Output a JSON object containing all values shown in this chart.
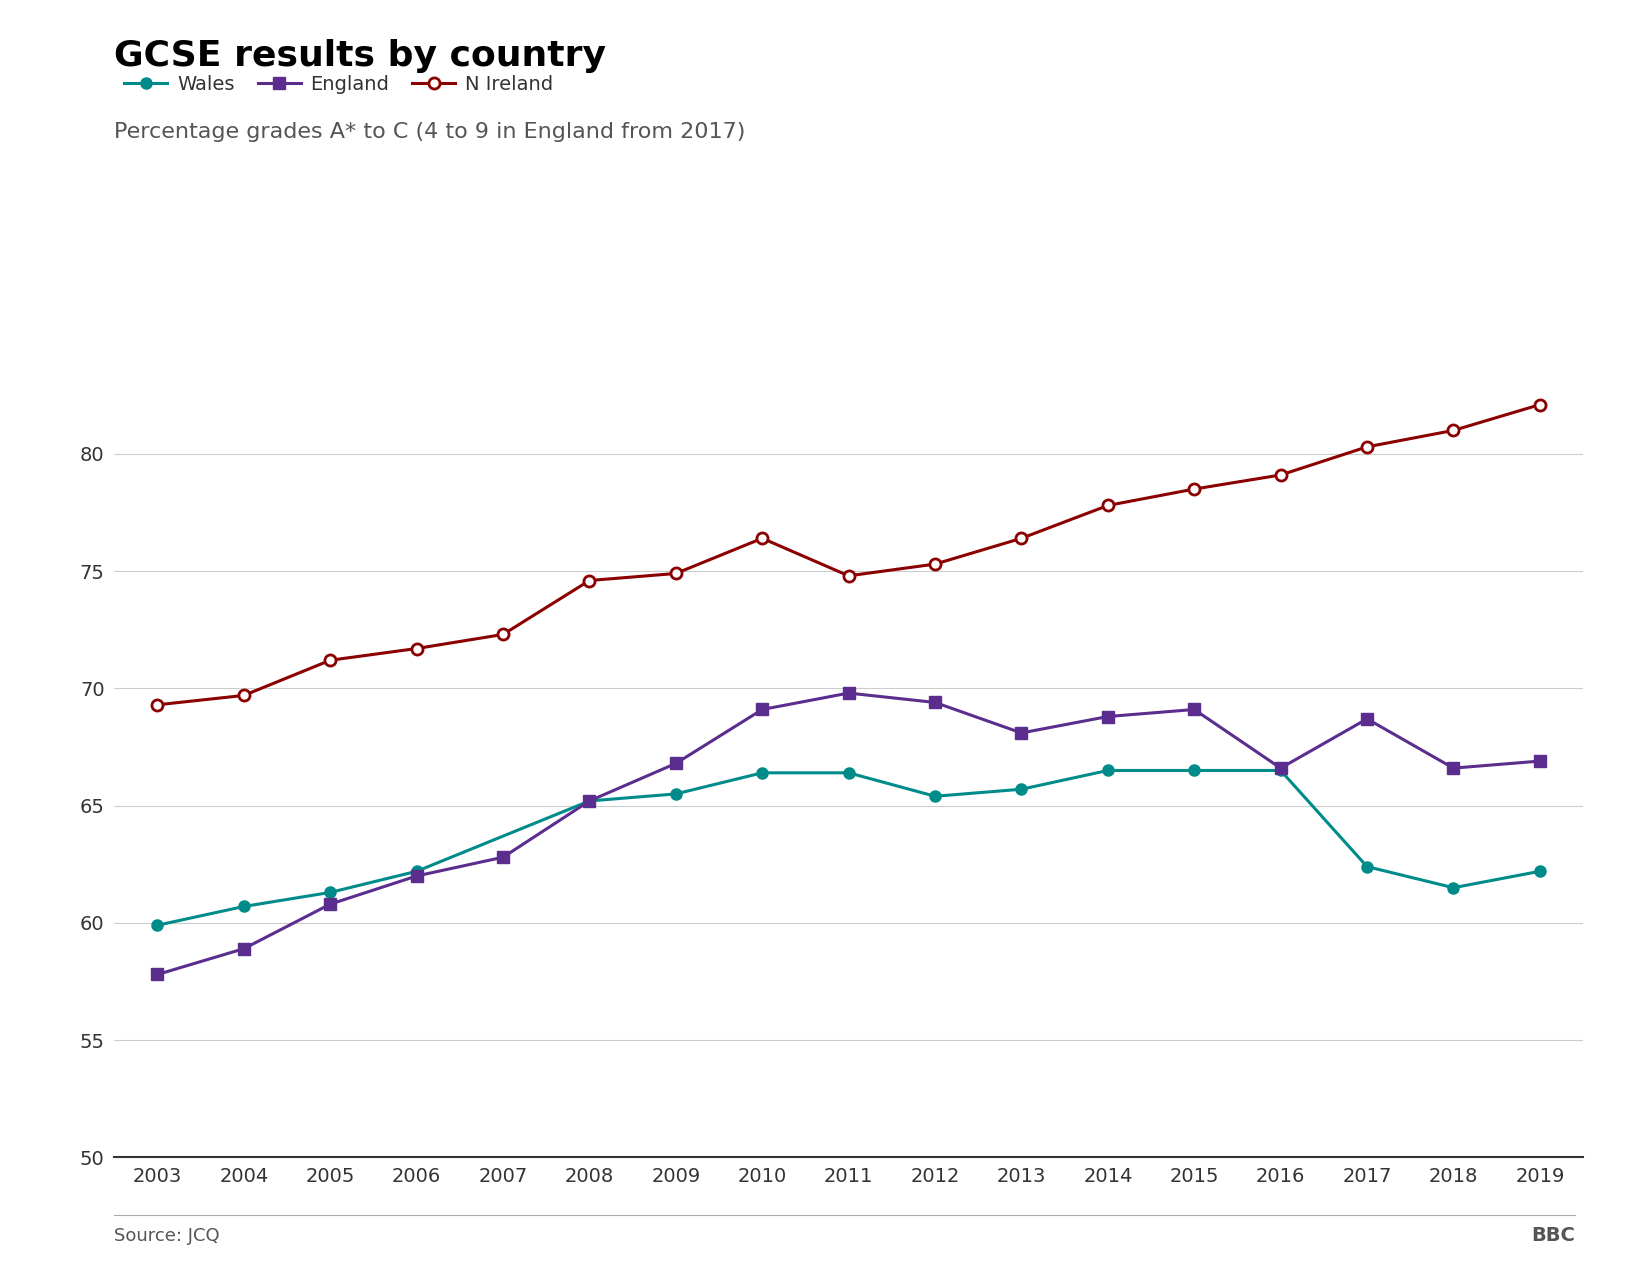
{
  "title": "GCSE results by country",
  "subtitle": "Percentage grades A* to C (4 to 9 in England from 2017)",
  "source": "Source: JCQ",
  "branding": "BBC",
  "years": [
    2003,
    2004,
    2005,
    2006,
    2007,
    2008,
    2009,
    2010,
    2011,
    2012,
    2013,
    2014,
    2015,
    2016,
    2017,
    2018,
    2019
  ],
  "wales": [
    59.9,
    60.7,
    61.3,
    62.2,
    null,
    65.2,
    65.5,
    66.4,
    66.4,
    65.4,
    65.7,
    66.5,
    66.5,
    66.5,
    62.4,
    61.5,
    62.2
  ],
  "england": [
    57.8,
    58.9,
    60.8,
    62.0,
    62.8,
    65.2,
    66.8,
    69.1,
    69.8,
    69.4,
    68.1,
    68.8,
    69.1,
    66.6,
    68.7,
    66.6,
    66.9
  ],
  "n_ireland": [
    69.3,
    69.7,
    71.2,
    71.7,
    72.3,
    74.6,
    74.9,
    76.4,
    74.8,
    75.3,
    76.4,
    77.8,
    78.5,
    79.1,
    80.3,
    81.0,
    82.1
  ],
  "wales_color": "#008B8B",
  "england_color": "#5B2D8E",
  "n_ireland_color": "#8B0000",
  "background_color": "#ffffff",
  "title_fontsize": 26,
  "subtitle_fontsize": 16,
  "tick_fontsize": 14,
  "legend_fontsize": 14,
  "source_fontsize": 13,
  "ylim": [
    50,
    84
  ],
  "yticks": [
    50,
    55,
    60,
    65,
    70,
    75,
    80
  ],
  "line_width": 2.2,
  "marker_size": 8
}
